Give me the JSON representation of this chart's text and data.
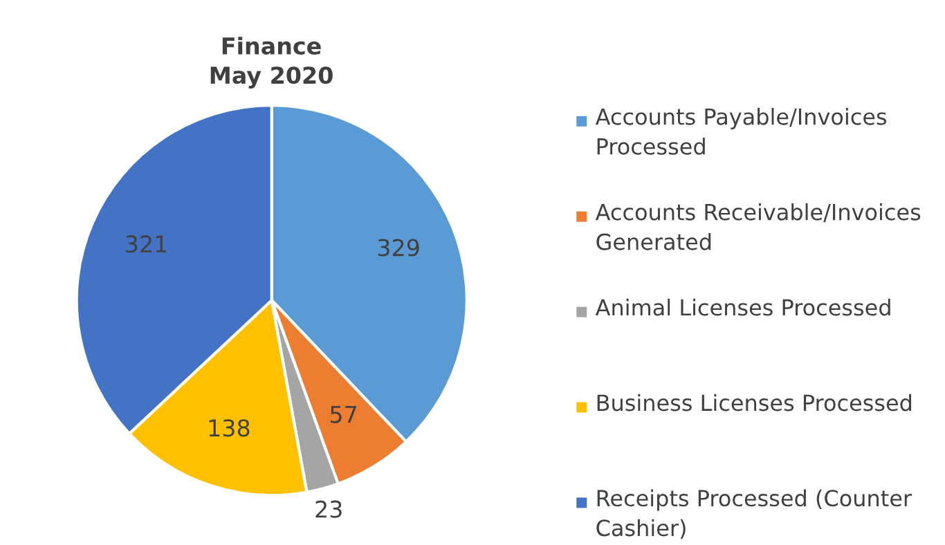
{
  "chart_data": {
    "type": "pie",
    "title": "Finance\nMay 2020",
    "categories": [
      "Accounts Payable/Invoices Processed",
      "Accounts Receivable/Invoices Generated",
      "Animal Licenses Processed",
      "Business Licenses Processed",
      "Receipts Processed (Counter Cashier)"
    ],
    "values": [
      329,
      57,
      23,
      138,
      321
    ],
    "colors": [
      "#5b9bd5",
      "#ed7d31",
      "#a5a5a5",
      "#ffc000",
      "#4472c4"
    ],
    "data_labels": true,
    "legend": "right"
  }
}
